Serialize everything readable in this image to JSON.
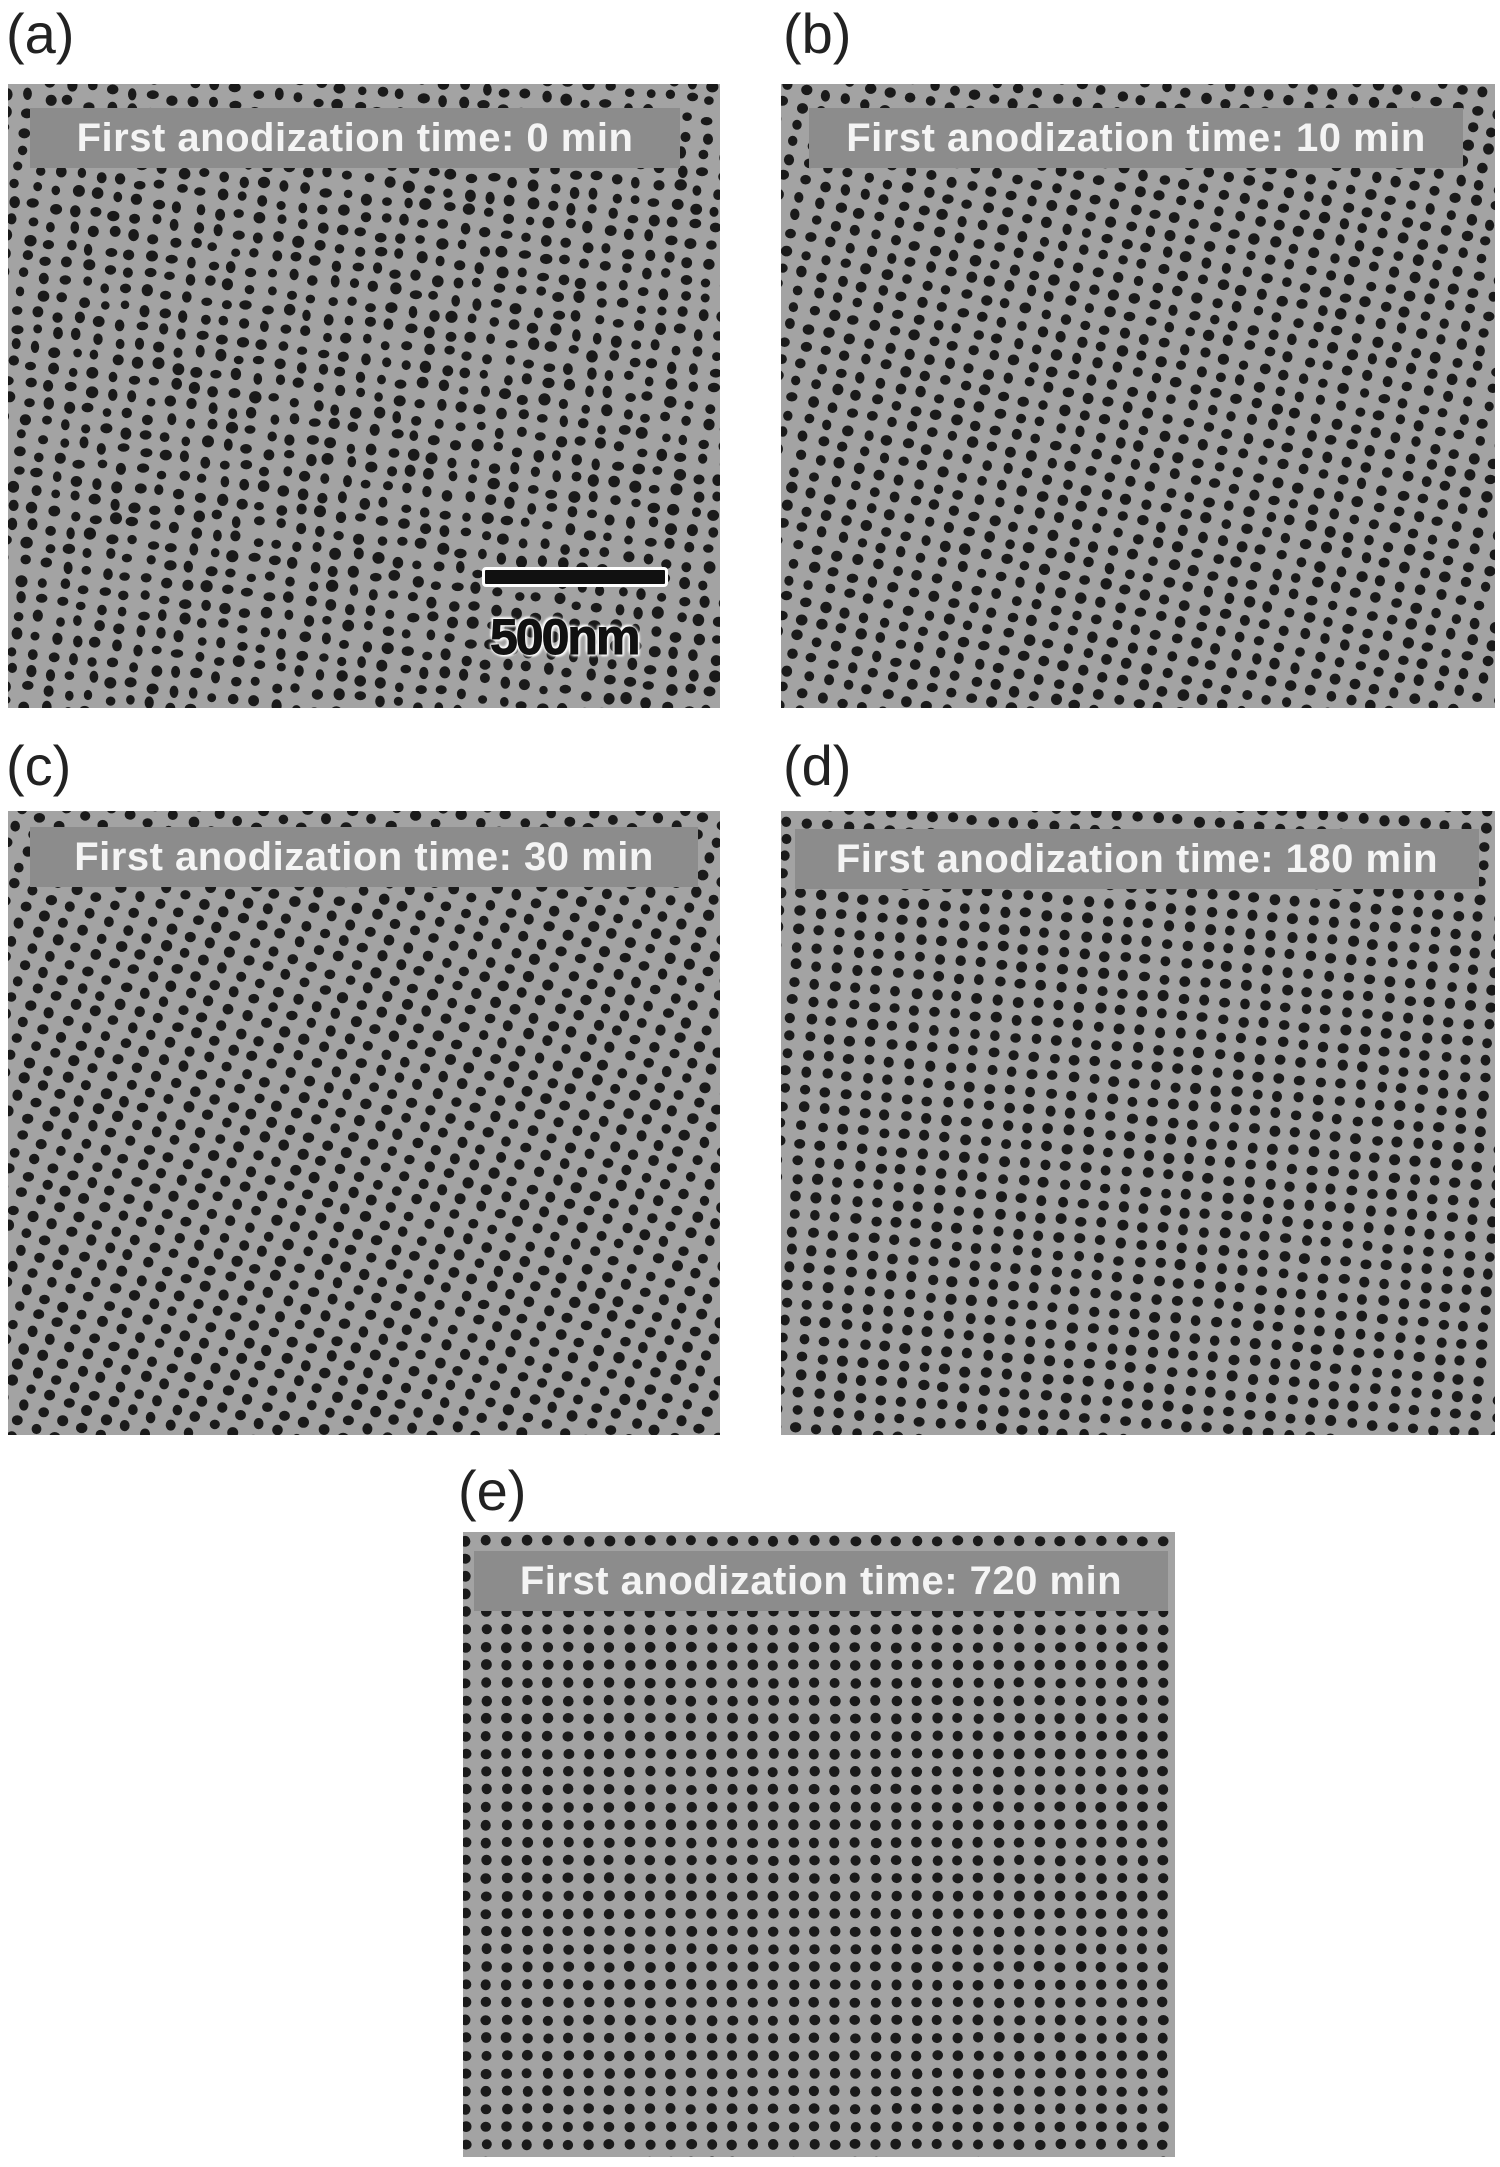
{
  "panels": [
    {
      "label": "(a)",
      "caption": "First anodization time: 0 min"
    },
    {
      "label": "(b)",
      "caption": "First anodization time: 10 min"
    },
    {
      "label": "(c)",
      "caption": "First anodization time: 30 min"
    },
    {
      "label": "(d)",
      "caption": "First anodization time: 180 min"
    },
    {
      "label": "(e)",
      "caption": "First anodization time: 720 min"
    }
  ],
  "scale_bar": {
    "label": "500nm"
  },
  "colors": {
    "matrix": "#a3a3a3",
    "pore": "#1a1a1a",
    "caption_bg": "#8c8c8c"
  }
}
